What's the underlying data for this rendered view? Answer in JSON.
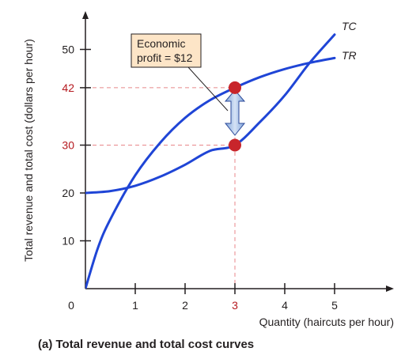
{
  "chart_data": {
    "type": "line",
    "caption": "(a) Total revenue and total cost curves",
    "xlabel": "Quantity (haircuts per hour)",
    "ylabel": "Total revenue and total cost (dollars per hour)",
    "xlim": [
      0,
      6
    ],
    "ylim": [
      0,
      57
    ],
    "x_ticks": [
      {
        "value": 1,
        "label": "1",
        "highlight": false
      },
      {
        "value": 2,
        "label": "2",
        "highlight": false
      },
      {
        "value": 3,
        "label": "3",
        "highlight": true
      },
      {
        "value": 4,
        "label": "4",
        "highlight": false
      },
      {
        "value": 5,
        "label": "5",
        "highlight": false
      }
    ],
    "y_ticks": [
      {
        "value": 10,
        "label": "10",
        "highlight": false
      },
      {
        "value": 20,
        "label": "20",
        "highlight": false
      },
      {
        "value": 30,
        "label": "30",
        "highlight": true
      },
      {
        "value": 42,
        "label": "42",
        "highlight": true
      },
      {
        "value": 50,
        "label": "50",
        "highlight": false
      }
    ],
    "origin_label": "0",
    "series": [
      {
        "name": "TC",
        "color": "#1f45d6",
        "x": [
          0,
          0.5,
          1,
          1.5,
          2,
          2.5,
          3,
          3.5,
          4,
          4.5,
          5
        ],
        "y": [
          20,
          20.4,
          21.5,
          23.4,
          25.9,
          28.8,
          30,
          34.8,
          40.4,
          47.2,
          53.1
        ]
      },
      {
        "name": "TR",
        "color": "#1f45d6",
        "x": [
          0,
          0.25,
          0.5,
          1,
          1.5,
          2,
          2.5,
          3,
          3.5,
          4,
          4.5,
          5
        ],
        "y": [
          0,
          8.5,
          14.5,
          23.7,
          30.5,
          35.7,
          39.4,
          42,
          44.2,
          45.9,
          47.2,
          48.2
        ]
      }
    ],
    "highlight_points": [
      {
        "x": 3,
        "y": 42,
        "color": "#c8252b"
      },
      {
        "x": 3,
        "y": 30,
        "color": "#c8252b"
      }
    ],
    "guide_color": "#e8868a",
    "annotation": {
      "lines": [
        "Economic",
        "profit = $12"
      ],
      "bg": "#fde5c7"
    },
    "arrow_color": "#9bb9e3"
  }
}
